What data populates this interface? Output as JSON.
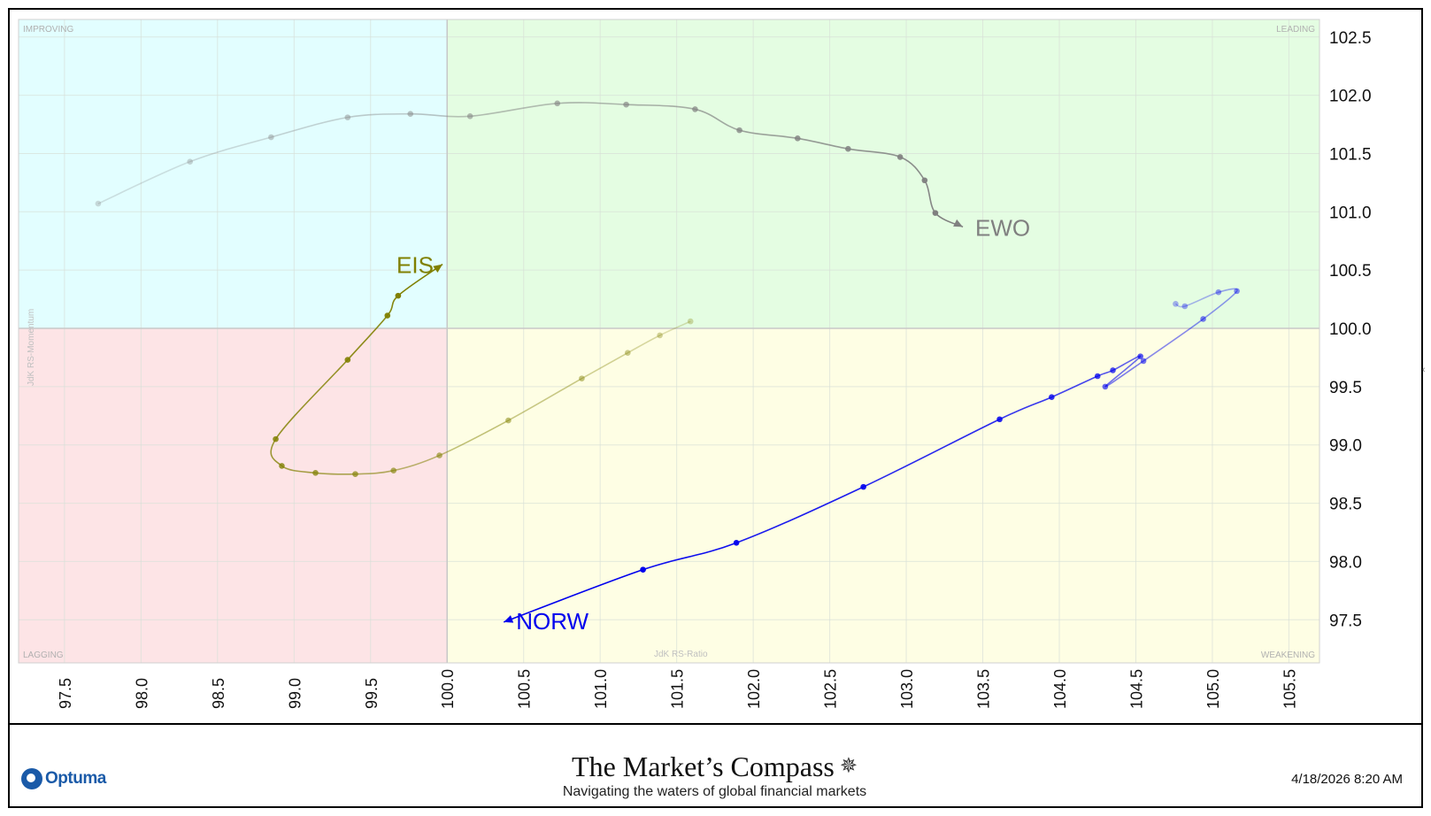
{
  "chart_data": {
    "type": "scatter",
    "title": "",
    "xlabel": "JdK RS-Ratio",
    "ylabel": "JdK RS-Momentum",
    "xlim": [
      97.2,
      105.7
    ],
    "ylim": [
      97.13,
      102.65
    ],
    "center": [
      100.0,
      100.0
    ],
    "x_ticks": [
      "97.5",
      "98.0",
      "98.5",
      "99.0",
      "99.5",
      "100.0",
      "100.5",
      "101.0",
      "101.5",
      "102.0",
      "102.5",
      "103.0",
      "103.5",
      "104.0",
      "104.5",
      "105.0",
      "105.5"
    ],
    "y_ticks": [
      "97.5",
      "98.0",
      "98.5",
      "99.0",
      "99.5",
      "100.0",
      "100.5",
      "101.0",
      "101.5",
      "102.0",
      "102.5"
    ],
    "quadrants": {
      "improving": "IMPROVING",
      "leading": "LEADING",
      "lagging": "LAGGING",
      "weakening": "WEAKENING"
    },
    "quadrant_colors": {
      "improving": "#e2feff",
      "leading": "#e4fde2",
      "lagging": "#fde4e6",
      "weakening": "#fefee4"
    },
    "series": [
      {
        "name": "EWO",
        "color": "#808080",
        "points": [
          [
            97.72,
            101.07
          ],
          [
            98.32,
            101.43
          ],
          [
            98.85,
            101.64
          ],
          [
            99.35,
            101.81
          ],
          [
            99.76,
            101.84
          ],
          [
            100.15,
            101.82
          ],
          [
            100.72,
            101.93
          ],
          [
            101.17,
            101.92
          ],
          [
            101.62,
            101.88
          ],
          [
            101.91,
            101.7
          ],
          [
            102.29,
            101.63
          ],
          [
            102.62,
            101.54
          ],
          [
            102.96,
            101.47
          ],
          [
            103.12,
            101.27
          ],
          [
            103.19,
            100.99
          ],
          [
            103.37,
            100.87
          ]
        ]
      },
      {
        "name": "EIS",
        "color": "#808000",
        "points": [
          [
            101.59,
            100.06
          ],
          [
            101.39,
            99.94
          ],
          [
            101.18,
            99.79
          ],
          [
            100.88,
            99.57
          ],
          [
            100.4,
            99.21
          ],
          [
            99.95,
            98.91
          ],
          [
            99.65,
            98.78
          ],
          [
            99.4,
            98.75
          ],
          [
            99.14,
            98.76
          ],
          [
            98.92,
            98.82
          ],
          [
            98.88,
            99.05
          ],
          [
            99.35,
            99.73
          ],
          [
            99.61,
            100.11
          ],
          [
            99.68,
            100.28
          ],
          [
            99.97,
            100.55
          ]
        ]
      },
      {
        "name": "NORW",
        "color": "#0000ee",
        "points": [
          [
            104.76,
            100.21
          ],
          [
            104.82,
            100.19
          ],
          [
            105.04,
            100.31
          ],
          [
            105.16,
            100.32
          ],
          [
            104.94,
            100.08
          ],
          [
            104.55,
            99.72
          ],
          [
            104.3,
            99.5
          ],
          [
            104.53,
            99.76
          ],
          [
            104.35,
            99.64
          ],
          [
            104.25,
            99.59
          ],
          [
            103.95,
            99.41
          ],
          [
            103.61,
            99.22
          ],
          [
            102.72,
            98.64
          ],
          [
            101.89,
            98.16
          ],
          [
            101.28,
            97.93
          ],
          [
            100.37,
            97.48
          ]
        ]
      }
    ]
  },
  "footer": {
    "logo_text": "Optuma",
    "brand_title": "The Market’s Compass",
    "brand_subtitle": "Navigating the waters of global financial markets",
    "timestamp": "4/18/2026 8:20 AM",
    "compass_icon": "compass-rose-icon"
  },
  "colors": {
    "axis_text": "#111111",
    "grid": "#d8e0d8",
    "quadrant_label": "#b0b0b0"
  }
}
